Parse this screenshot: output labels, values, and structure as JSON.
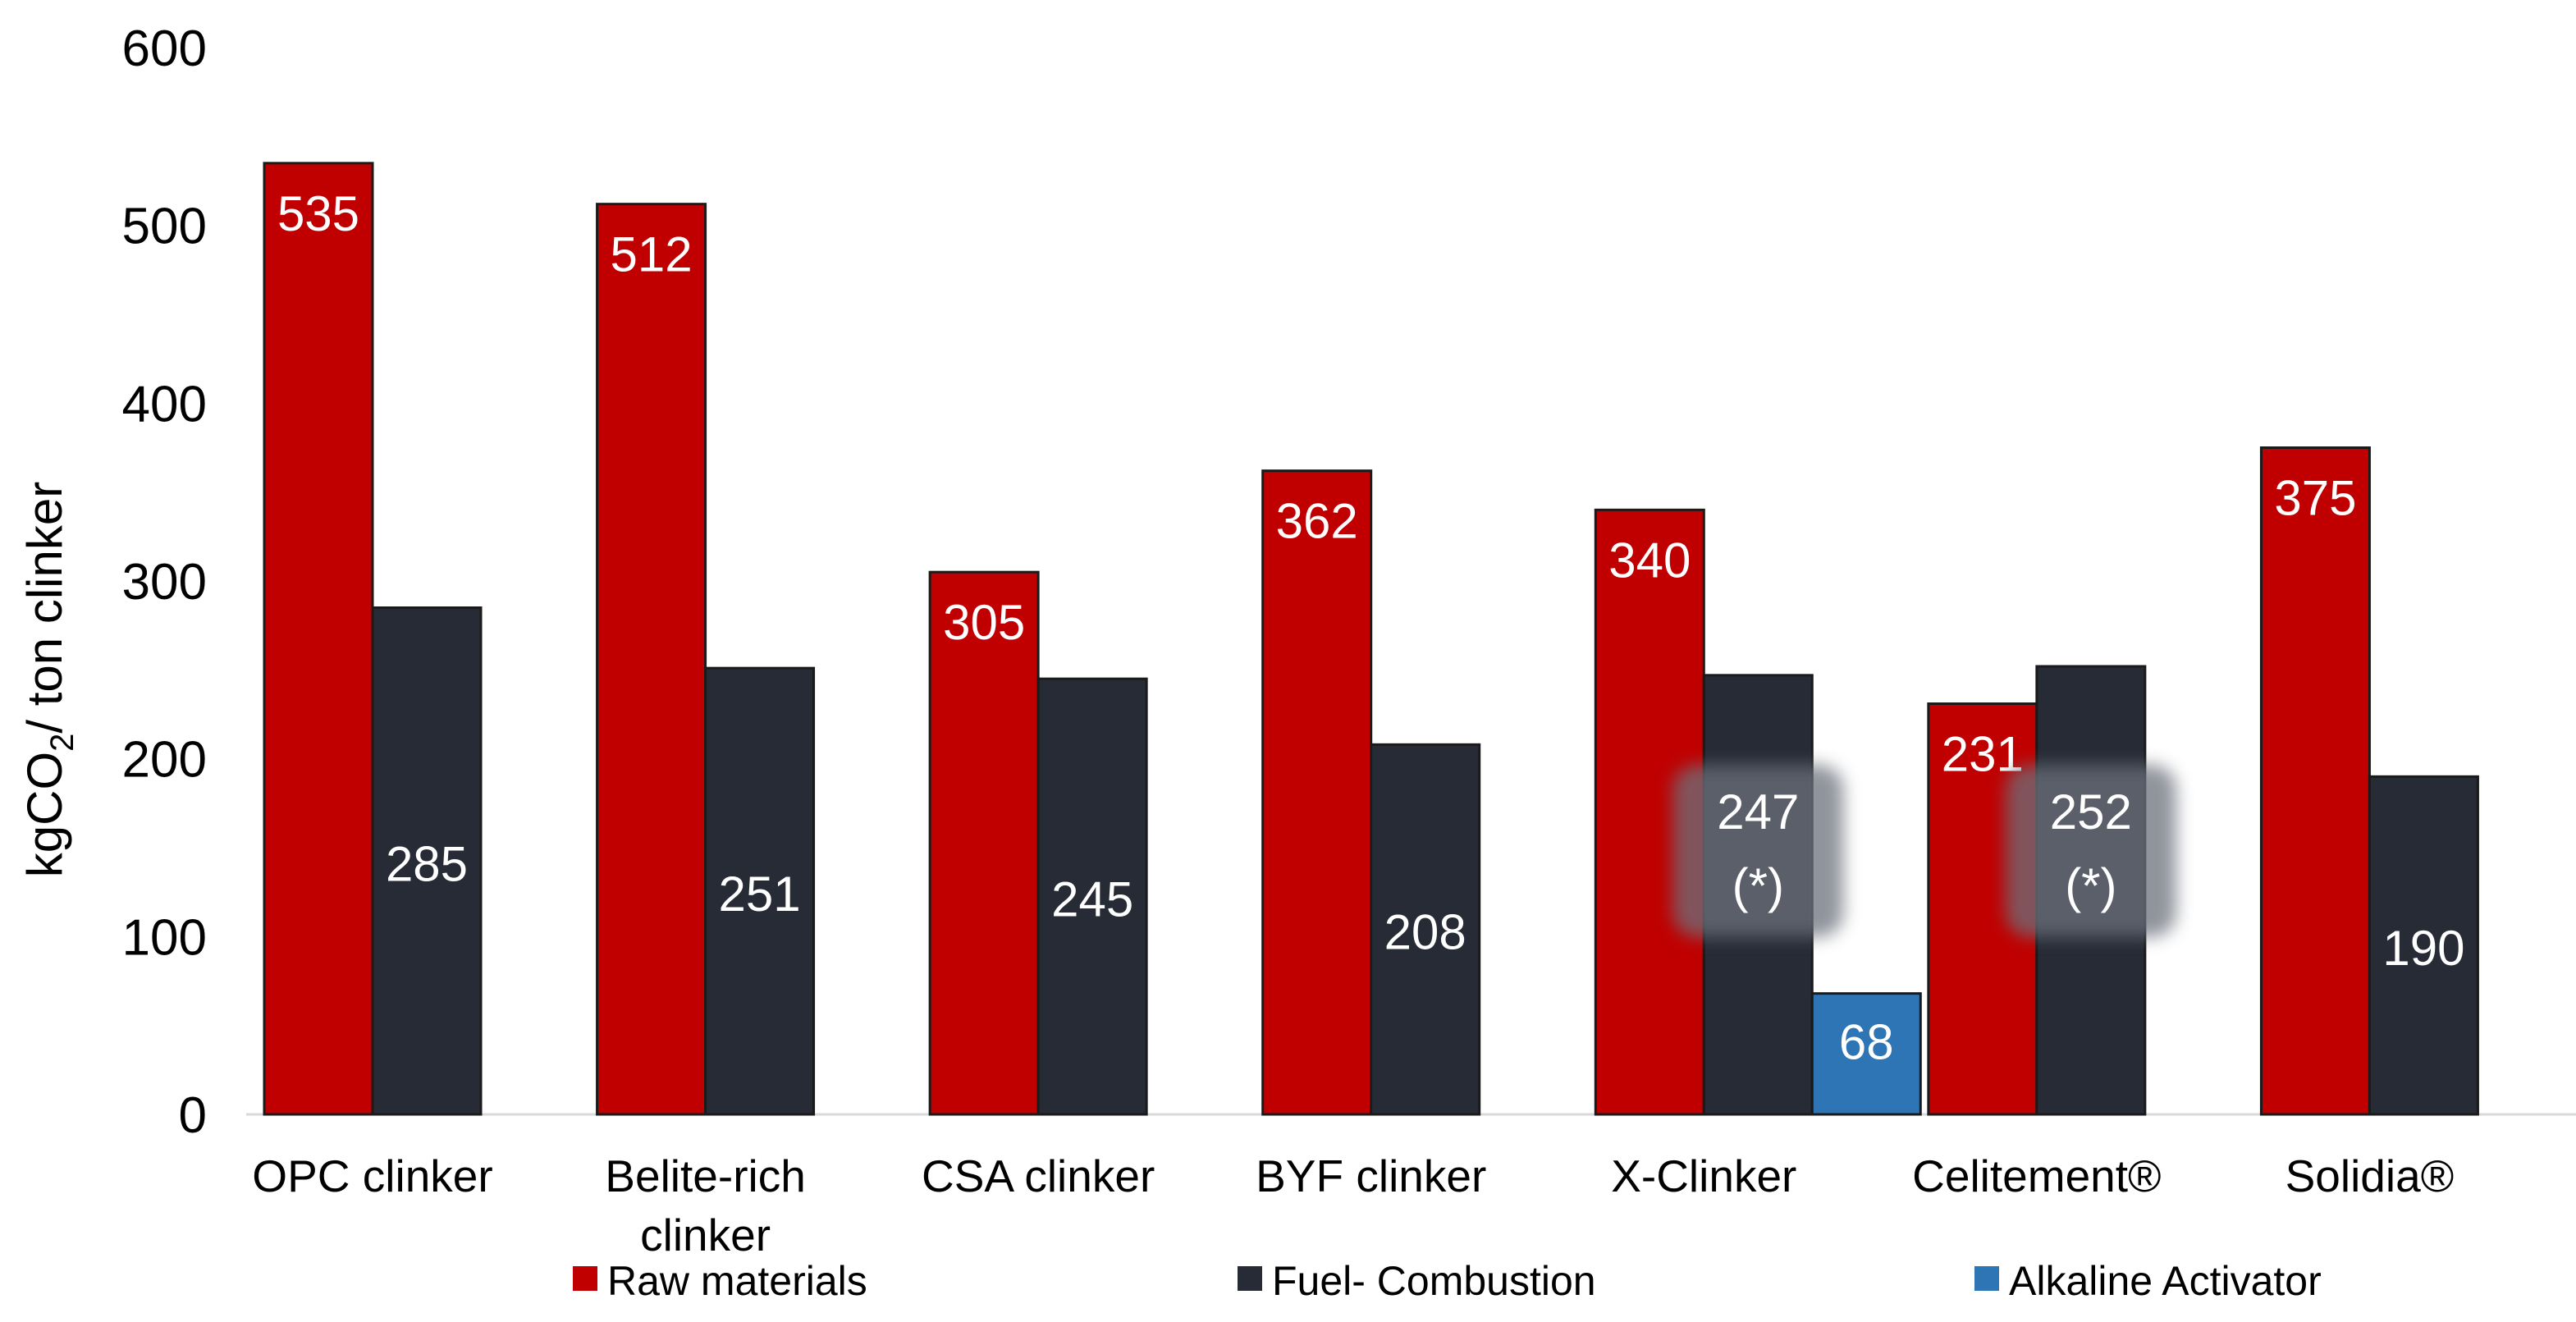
{
  "colors": {
    "raw_materials": "#c00000",
    "fuel_combustion": "#262b35",
    "alkaline_activator": "#2e75b6",
    "axis": "#d9d9d9"
  },
  "chart_data": {
    "type": "bar",
    "ylabel": "kgCO",
    "ylabel_sub": "2",
    "ylabel_rest": "/ ton clinker",
    "ylim": [
      0,
      600
    ],
    "yticks": [
      "0",
      "100",
      "200",
      "300",
      "400",
      "500",
      "600"
    ],
    "grid": false,
    "legend_position": "bottom",
    "categories": [
      [
        "OPC clinker"
      ],
      [
        "Belite-rich",
        "clinker"
      ],
      [
        "CSA clinker"
      ],
      [
        "BYF clinker"
      ],
      [
        "X-Clinker"
      ],
      [
        "Celitement®"
      ],
      [
        "Solidia®"
      ]
    ],
    "series": [
      {
        "name": "Raw materials",
        "color_key": "raw_materials",
        "values": [
          535,
          512,
          305,
          362,
          340,
          231,
          375
        ],
        "labels": [
          [
            "535"
          ],
          [
            "512"
          ],
          [
            "305"
          ],
          [
            "362"
          ],
          [
            "340"
          ],
          [
            "231"
          ],
          [
            "375"
          ]
        ]
      },
      {
        "name": "Fuel- Combustion",
        "color_key": "fuel_combustion",
        "values": [
          285,
          251,
          245,
          208,
          247,
          252,
          190
        ],
        "labels": [
          [
            "285"
          ],
          [
            "251"
          ],
          [
            "245"
          ],
          [
            "208"
          ],
          [
            "247",
            "(*)"
          ],
          [
            "252",
            "(*)"
          ],
          [
            "190"
          ]
        ]
      },
      {
        "name": "Alkaline Activator",
        "color_key": "alkaline_activator",
        "values": [
          null,
          null,
          null,
          null,
          68,
          null,
          null
        ],
        "labels": [
          null,
          null,
          null,
          null,
          [
            "68"
          ],
          null,
          null
        ]
      }
    ]
  }
}
